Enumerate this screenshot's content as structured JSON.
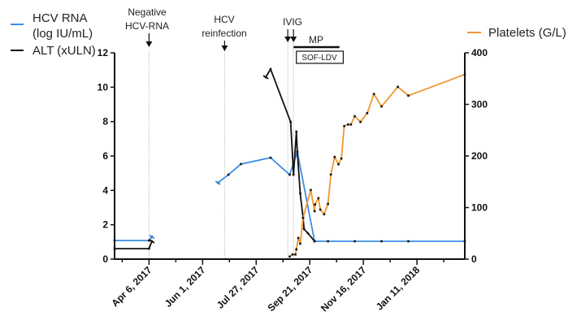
{
  "chart_data": {
    "type": "line",
    "x_unit": "days since Apr 6, 2017",
    "xlim": [
      -36,
      330
    ],
    "x_ticks": [
      {
        "day": 0,
        "label": "Apr 6, 2017"
      },
      {
        "day": 56,
        "label": "Jun 1, 2017"
      },
      {
        "day": 112,
        "label": "Jul 27, 2017"
      },
      {
        "day": 168,
        "label": "Sep 21, 2017"
      },
      {
        "day": 224,
        "label": "Nov 16, 2017"
      },
      {
        "day": 280,
        "label": "Jan 11, 2018"
      }
    ],
    "y_left": {
      "ylim": [
        0,
        12
      ],
      "ticks": [
        "0",
        "2",
        "4",
        "6",
        "8",
        "10",
        "12"
      ]
    },
    "y_right": {
      "ylim": [
        0,
        400
      ],
      "ticks": [
        "0",
        "100",
        "200",
        "300",
        "400"
      ]
    },
    "legend": {
      "hcv_line1": "HCV RNA",
      "hcv_line2": "(log IU/mL)",
      "alt": "ALT (xULN)",
      "platelets": "Platelets (G/L)"
    },
    "series": [
      {
        "name": "HCV RNA (log IU/mL)",
        "axis": "left",
        "color": "#3a8ee6",
        "segments": [
          [
            [
              -36,
              1.08
            ],
            [
              0,
              1.08
            ],
            [
              3,
              1.3
            ]
          ],
          [
            [
              72,
              4.44
            ],
            [
              83,
              4.91
            ],
            [
              96,
              5.53
            ],
            [
              127,
              5.9
            ],
            [
              147,
              4.91
            ],
            [
              155,
              6.24
            ],
            [
              173,
              1.04
            ],
            [
              187,
              1.04
            ],
            [
              215,
              1.04
            ],
            [
              243,
              1.04
            ],
            [
              271,
              1.04
            ],
            [
              330,
              1.04
            ]
          ]
        ]
      },
      {
        "name": "ALT (xULN)",
        "axis": "left",
        "color": "#111111",
        "segments": [
          [
            [
              -36,
              0.61
            ],
            [
              0,
              0.61
            ],
            [
              3,
              1.04
            ]
          ],
          [
            [
              122,
              10.58
            ],
            [
              127,
              11.05
            ],
            [
              148,
              7.98
            ],
            [
              151,
              4.91
            ],
            [
              154,
              7.42
            ],
            [
              155,
              6.24
            ],
            [
              158,
              3.83
            ],
            [
              161,
              2.41
            ],
            [
              162,
              1.75
            ],
            [
              166,
              1.51
            ],
            [
              173,
              1.04
            ]
          ]
        ]
      },
      {
        "name": "Platelets (G/L)",
        "axis": "right",
        "color": "#f0962e",
        "segments": [
          [
            [
              147,
              5
            ],
            [
              150,
              9
            ],
            [
              153,
              9
            ],
            [
              154,
              19
            ],
            [
              156,
              41
            ],
            [
              158,
              30
            ],
            [
              161,
              80
            ],
            [
              169,
              134
            ],
            [
              173,
              93
            ],
            [
              173.5,
              106
            ],
            [
              177,
              118
            ],
            [
              179,
              96
            ],
            [
              183,
              87
            ],
            [
              187,
              107
            ],
            [
              190,
              164
            ],
            [
              194,
              198
            ],
            [
              198,
              184
            ],
            [
              201,
              195
            ],
            [
              204,
              258
            ],
            [
              208,
              261
            ],
            [
              211,
              261
            ],
            [
              215,
              277
            ],
            [
              221,
              266
            ],
            [
              228,
              283
            ],
            [
              235,
              320
            ],
            [
              243,
              296
            ],
            [
              260,
              334
            ],
            [
              271,
              317
            ],
            [
              330,
              358
            ]
          ]
        ]
      }
    ],
    "annotations": {
      "negative_line1": "Negative",
      "negative_line2": "HCV-RNA",
      "negative_day": 0,
      "reinfection_line1": "HCV",
      "reinfection_line2": "reinfection",
      "reinfection_day": 79,
      "ivig": "IVIG",
      "ivig_days": [
        145,
        151
      ],
      "mp": "MP",
      "mp_days": [
        151,
        199
      ],
      "sof_ldv": "SOF-LDV",
      "sof_days": [
        154,
        203
      ]
    }
  }
}
